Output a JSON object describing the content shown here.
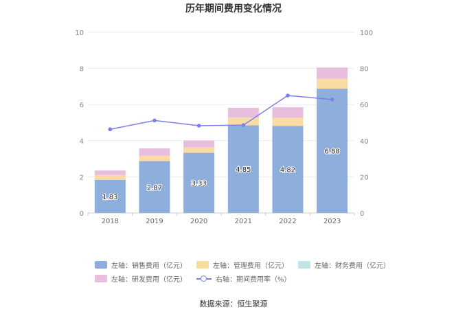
{
  "title": "历年期间费用变化情况",
  "source": "数据来源：恒生聚源",
  "colors": {
    "sales": "#8eaedc",
    "admin": "#fbdba4",
    "finance": "#bfe6e8",
    "rd": "#e7bedd",
    "rate": "#7b7fe6"
  },
  "legend": [
    {
      "key": "sales",
      "label": "左轴：销售费用（亿元）",
      "kind": "bar"
    },
    {
      "key": "admin",
      "label": "左轴：管理费用（亿元）",
      "kind": "bar"
    },
    {
      "key": "finance",
      "label": "左轴：财务费用（亿元）",
      "kind": "bar"
    },
    {
      "key": "rd",
      "label": "左轴：研发费用（亿元）",
      "kind": "bar"
    },
    {
      "key": "rate",
      "label": "右轴：期间费用率（%）",
      "kind": "line"
    }
  ],
  "chart_data": {
    "type": "bar",
    "title": "历年期间费用变化情况",
    "categories": [
      "2018",
      "2019",
      "2020",
      "2021",
      "2022",
      "2023"
    ],
    "stacked": true,
    "series": [
      {
        "key": "sales",
        "name": "左轴：销售费用（亿元）",
        "axis": "left",
        "values": [
          1.83,
          2.87,
          3.33,
          4.85,
          4.82,
          6.88
        ],
        "show_labels": true
      },
      {
        "key": "admin",
        "name": "左轴：管理费用（亿元）",
        "axis": "left",
        "values": [
          0.27,
          0.3,
          0.3,
          0.42,
          0.45,
          0.55
        ]
      },
      {
        "key": "finance",
        "name": "左轴：财务费用（亿元）",
        "axis": "left",
        "values": [
          0.0,
          0.0,
          0.0,
          0.02,
          0.0,
          0.0
        ]
      },
      {
        "key": "rd",
        "name": "左轴：研发费用（亿元）",
        "axis": "left",
        "values": [
          0.25,
          0.4,
          0.38,
          0.53,
          0.58,
          0.62
        ]
      },
      {
        "key": "rate",
        "name": "右轴：期间费用率（%）",
        "axis": "right",
        "type": "line",
        "values": [
          46.3,
          51.2,
          48.3,
          48.6,
          65.0,
          62.8
        ]
      }
    ],
    "left_axis": {
      "min": 0,
      "max": 10,
      "ticks": [
        0,
        2,
        4,
        6,
        8,
        10
      ]
    },
    "right_axis": {
      "min": 0,
      "max": 100,
      "ticks": [
        0,
        20,
        40,
        60,
        80,
        100
      ]
    },
    "grid": true,
    "legend_position": "bottom"
  }
}
